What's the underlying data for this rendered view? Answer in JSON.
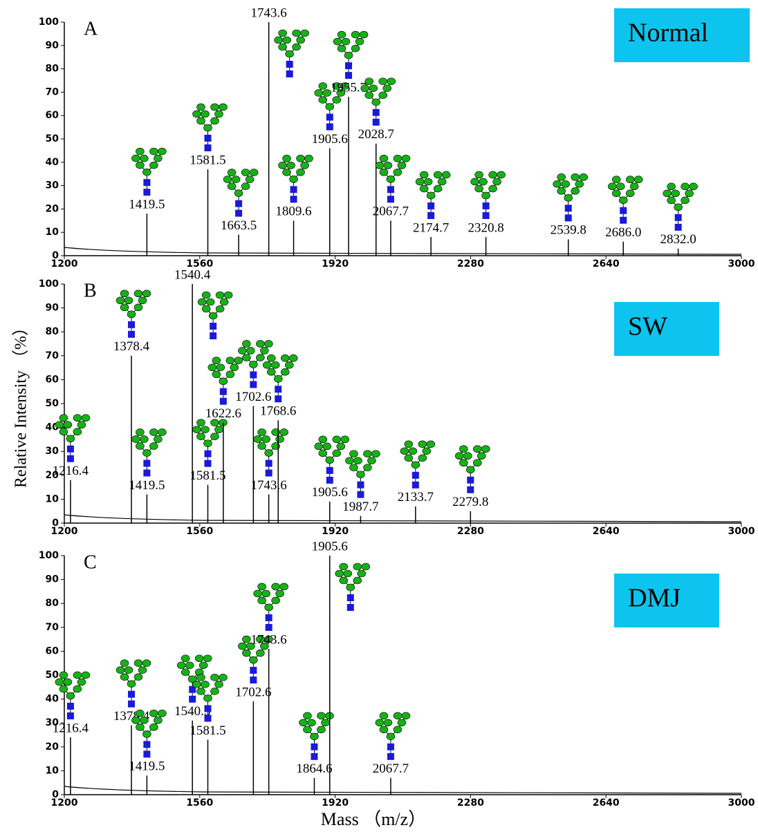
{
  "chart_data": [
    {
      "type": "spectrum",
      "panel": "A",
      "badge": "Normal",
      "x": [
        1419.5,
        1581.5,
        1663.5,
        1743.6,
        1809.6,
        1905.6,
        1955.7,
        2028.7,
        2067.7,
        2174.7,
        2320.8,
        2539.8,
        2686.0,
        2832.0
      ],
      "x_labels": [
        "1419.5",
        "1581.5",
        "1663.5",
        "1743.6",
        "1809.6",
        "1905.6",
        "1955.7",
        "2028.7",
        "2067.7",
        "2174.7",
        "2320.8",
        "2539.8",
        "2686.0",
        "2832.0"
      ],
      "values": [
        18,
        37,
        9,
        100,
        15,
        46,
        68,
        48,
        15,
        8,
        8,
        7,
        6,
        3
      ],
      "xlim": [
        1200,
        3000
      ],
      "xticks": [
        1200,
        1560,
        1920,
        2280,
        2640,
        3000
      ],
      "ylim": [
        0,
        100
      ],
      "yticks": [
        0,
        10,
        20,
        30,
        40,
        50,
        60,
        70,
        80,
        90,
        100
      ]
    },
    {
      "type": "spectrum",
      "panel": "B",
      "badge": "SW",
      "ylabel": "Relative Intensity （%）",
      "x": [
        1216.4,
        1378.4,
        1419.5,
        1540.4,
        1581.5,
        1622.6,
        1702.6,
        1743.6,
        1768.6,
        1905.6,
        1987.7,
        2133.7,
        2279.8
      ],
      "x_labels": [
        "1216.4",
        "1378.4",
        "1419.5",
        "1540.4",
        "1581.5",
        "1622.6",
        "1702.6",
        "1743.6",
        "1768.6",
        "1905.6",
        "1987.7",
        "2133.7",
        "2279.8"
      ],
      "values": [
        18,
        70,
        12,
        100,
        16,
        42,
        49,
        12,
        43,
        9,
        3,
        7,
        5
      ],
      "xlim": [
        1200,
        3000
      ],
      "xticks": [
        1200,
        1560,
        1920,
        2280,
        2640,
        3000
      ],
      "ylim": [
        0,
        100
      ],
      "yticks": [
        0,
        10,
        20,
        30,
        40,
        50,
        60,
        70,
        80,
        90,
        100
      ]
    },
    {
      "type": "spectrum",
      "panel": "C",
      "badge": "DMJ",
      "xlabel": "Mass （m/z）",
      "x": [
        1216.4,
        1378.4,
        1419.5,
        1540.5,
        1581.5,
        1702.6,
        1743.6,
        1864.6,
        1905.6,
        2067.7
      ],
      "x_labels": [
        "1216.4",
        "1378.4",
        "1419.5",
        "1540.5",
        "1581.5",
        "1702.6",
        "1743.6",
        "1864.6",
        "1905.6",
        "2067.7"
      ],
      "values": [
        24,
        29,
        8,
        31,
        23,
        39,
        61,
        7,
        100,
        7
      ],
      "xlim": [
        1200,
        3000
      ],
      "xticks": [
        1200,
        1560,
        1920,
        2280,
        2640,
        3000
      ],
      "ylim": [
        0,
        100
      ],
      "yticks": [
        0,
        10,
        20,
        30,
        40,
        50,
        60,
        70,
        80,
        90,
        100
      ]
    }
  ]
}
